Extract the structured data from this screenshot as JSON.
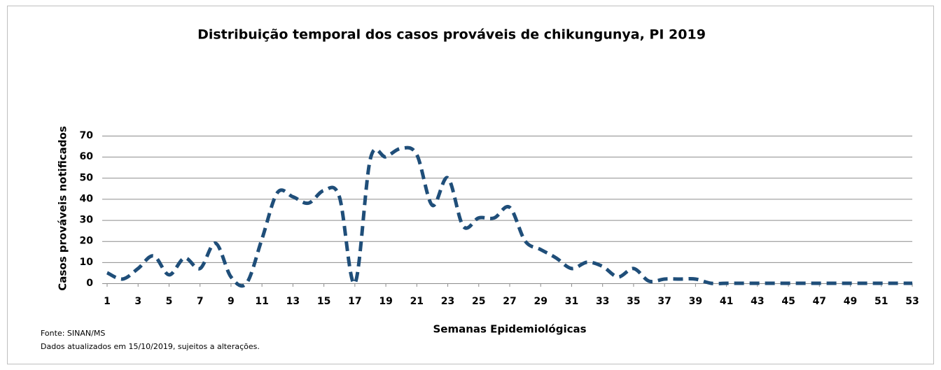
{
  "chart_data": {
    "type": "line",
    "title": "Distribuição temporal dos casos prováveis de chikungunya,  PI 2019",
    "ylabel": "Casos prováveis notificados",
    "xlabel": "Semanas Epidemiológicas",
    "source": "Fonte: SINAN/MS",
    "note": "Dados atualizados em 15/10/2019, sujeitos a alterações.",
    "x": [
      1,
      2,
      3,
      4,
      5,
      6,
      7,
      8,
      9,
      10,
      11,
      12,
      13,
      14,
      15,
      16,
      17,
      18,
      19,
      20,
      21,
      22,
      23,
      24,
      25,
      26,
      27,
      28,
      29,
      30,
      31,
      32,
      33,
      34,
      35,
      36,
      37,
      38,
      39,
      40,
      41,
      42,
      43,
      44,
      45,
      46,
      47,
      48,
      49,
      50,
      51,
      52,
      53
    ],
    "values": [
      5,
      2,
      7,
      13,
      4,
      12,
      7,
      19,
      3,
      0,
      21,
      43,
      41,
      38,
      44,
      41,
      0,
      59,
      60,
      64,
      61,
      37,
      50,
      27,
      31,
      31,
      36,
      20,
      16,
      12,
      7,
      10,
      8,
      3,
      7,
      1,
      2,
      2,
      2,
      0,
      0,
      0,
      0,
      0,
      0,
      0,
      0,
      0,
      0,
      0,
      0,
      0,
      0
    ],
    "color": "#1f4e79",
    "xlim": [
      1,
      53
    ],
    "xticks": [
      1,
      3,
      5,
      7,
      9,
      11,
      13,
      15,
      17,
      19,
      21,
      23,
      25,
      27,
      29,
      31,
      33,
      35,
      37,
      39,
      41,
      43,
      45,
      47,
      49,
      51,
      53
    ],
    "ylim": [
      0,
      70
    ],
    "yticks": [
      0,
      10,
      20,
      30,
      40,
      50,
      60,
      70
    ],
    "grid": true
  }
}
